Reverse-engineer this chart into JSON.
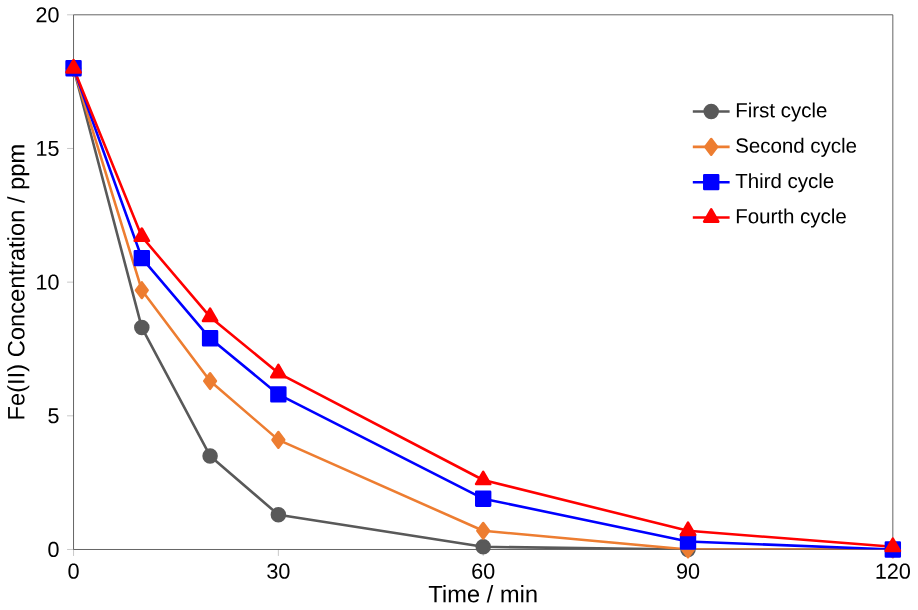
{
  "chart_data": {
    "type": "line",
    "xlabel": "Time / min",
    "ylabel": "Fe(II) Concentration / ppm",
    "x": [
      0,
      10,
      20,
      30,
      60,
      90,
      120
    ],
    "xlim": [
      0,
      120
    ],
    "xticks": [
      0,
      30,
      60,
      90,
      120
    ],
    "ylim": [
      0,
      20
    ],
    "yticks": [
      0,
      5,
      10,
      15,
      20
    ],
    "grid": false,
    "legend": "right",
    "series": [
      {
        "name": "First cycle",
        "color": "#595959",
        "marker": "circle",
        "values": [
          18.0,
          8.3,
          3.5,
          1.3,
          0.1,
          0.0,
          0.0
        ]
      },
      {
        "name": "Second cycle",
        "color": "#ed7d31",
        "marker": "diamond",
        "values": [
          18.0,
          9.7,
          6.3,
          4.1,
          0.7,
          0.0,
          0.0
        ]
      },
      {
        "name": "Third cycle",
        "color": "#0000ff",
        "marker": "square",
        "values": [
          18.0,
          10.9,
          7.9,
          5.8,
          1.9,
          0.3,
          0.0
        ]
      },
      {
        "name": "Fourth cycle",
        "color": "#ff0000",
        "marker": "triangle",
        "values": [
          18.0,
          11.7,
          8.7,
          6.6,
          2.6,
          0.7,
          0.1
        ]
      }
    ]
  }
}
